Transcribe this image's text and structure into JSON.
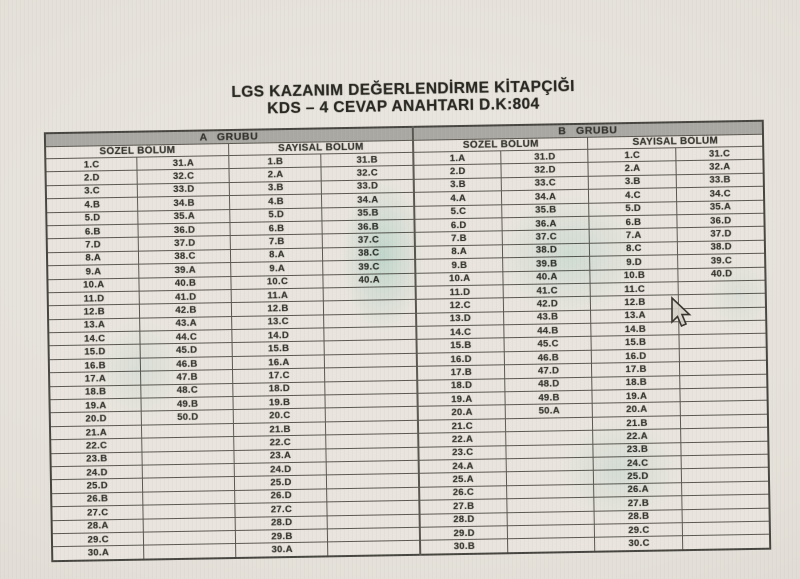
{
  "title": {
    "line1": "LGS KAZANIM DEĞERLENDİRME KİTAPÇIĞI",
    "line2": "KDS – 4 CEVAP ANAHTARI D.K:804"
  },
  "icons": {
    "cursor": "mouse-arrow-pointer"
  },
  "colors": {
    "paper": "#e9e5de",
    "header_band": "#a9a8a3",
    "border": "#59564f",
    "text": "#35342e",
    "photo_tint": "#96d8cd"
  },
  "table": {
    "rows": 30,
    "groups": [
      {
        "label": "A GRUBU",
        "sections": [
          {
            "label": "SÖZEL BÖLÜM",
            "col1": [
              "1.C",
              "2.D",
              "3.C",
              "4.B",
              "5.D",
              "6.B",
              "7.D",
              "8.A",
              "9.A",
              "10.A",
              "11.D",
              "12.B",
              "13.A",
              "14.C",
              "15.D",
              "16.B",
              "17.A",
              "18.B",
              "19.A",
              "20.D",
              "21.A",
              "22.C",
              "23.B",
              "24.D",
              "25.D",
              "26.B",
              "27.C",
              "28.A",
              "29.C",
              "30.A"
            ],
            "col2": [
              "31.A",
              "32.C",
              "33.D",
              "34.B",
              "35.A",
              "36.D",
              "37.D",
              "38.C",
              "39.A",
              "40.B",
              "41.D",
              "42.B",
              "43.A",
              "44.C",
              "45.D",
              "46.B",
              "47.B",
              "48.C",
              "49.B",
              "50.D"
            ]
          },
          {
            "label": "SAYISAL BÖLÜM",
            "col1": [
              "1.B",
              "2.A",
              "3.B",
              "4.B",
              "5.D",
              "6.B",
              "7.B",
              "8.A",
              "9.A",
              "10.C",
              "11.A",
              "12.B",
              "13.C",
              "14.D",
              "15.B",
              "16.A",
              "17.C",
              "18.D",
              "19.B",
              "20.C",
              "21.B",
              "22.C",
              "23.A",
              "24.D",
              "25.D",
              "26.D",
              "27.C",
              "28.D",
              "29.B",
              "30.A"
            ],
            "col2": [
              "31.B",
              "32.C",
              "33.D",
              "34.A",
              "35.B",
              "36.B",
              "37.C",
              "38.C",
              "39.C",
              "40.A"
            ]
          }
        ]
      },
      {
        "label": "B GRUBU",
        "sections": [
          {
            "label": "SÖZEL BÖLÜM",
            "col1": [
              "1.A",
              "2.D",
              "3.B",
              "4.A",
              "5.C",
              "6.D",
              "7.B",
              "8.A",
              "9.B",
              "10.A",
              "11.D",
              "12.C",
              "13.D",
              "14.C",
              "15.B",
              "16.D",
              "17.B",
              "18.D",
              "19.A",
              "20.A",
              "21.C",
              "22.A",
              "23.C",
              "24.A",
              "25.A",
              "26.C",
              "27.B",
              "28.D",
              "29.D",
              "30.B"
            ],
            "col2": [
              "31.D",
              "32.D",
              "33.C",
              "34.A",
              "35.B",
              "36.A",
              "37.C",
              "38.D",
              "39.B",
              "40.A",
              "41.C",
              "42.D",
              "43.B",
              "44.B",
              "45.C",
              "46.B",
              "47.D",
              "48.D",
              "49.B",
              "50.A"
            ]
          },
          {
            "label": "SAYISAL BÖLÜM",
            "col1": [
              "1.C",
              "2.A",
              "3.B",
              "4.C",
              "5.D",
              "6.B",
              "7.A",
              "8.C",
              "9.D",
              "10.B",
              "11.C",
              "12.B",
              "13.A",
              "14.B",
              "15.B",
              "16.D",
              "17.B",
              "18.B",
              "19.A",
              "20.A",
              "21.B",
              "22.A",
              "23.B",
              "24.C",
              "25.D",
              "26.A",
              "27.B",
              "28.B",
              "29.C",
              "30.C"
            ],
            "col2": [
              "31.C",
              "32.A",
              "33.B",
              "34.C",
              "35.A",
              "36.D",
              "37.D",
              "38.D",
              "39.C",
              "40.D"
            ]
          }
        ]
      }
    ]
  }
}
